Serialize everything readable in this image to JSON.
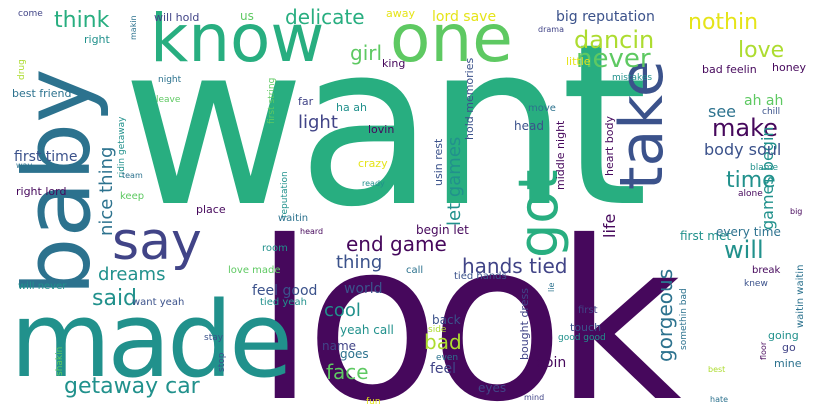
{
  "palette": {
    "dark_purple": "#46085c",
    "indigo": "#414487",
    "slate_blue": "#3b528b",
    "steel_blue": "#2c728e",
    "teal": "#21918c",
    "green_teal": "#28ae80",
    "green": "#5ec962",
    "lime": "#addc30",
    "yellow": "#e5e419"
  },
  "words": [
    "want",
    "look",
    "made",
    "baby",
    "know",
    "one",
    "say",
    "take",
    "got",
    "never",
    "dancin",
    "love",
    "nothin",
    "think",
    "delicate",
    "girl",
    "make",
    "time",
    "games begin",
    "end game",
    "will",
    "said",
    "dreams",
    "hands tied",
    "thing",
    "getaway car",
    "face",
    "bad",
    "gorgeous",
    "let games",
    "light",
    "nice thing",
    "see",
    "ah ah",
    "body soul",
    "cool",
    "begin let",
    "world",
    "feel good",
    "feel",
    "name",
    "goes",
    "yeah call",
    "back",
    "first time",
    "big reputation",
    "lord save",
    "us",
    "will hold",
    "away",
    "king",
    "hold memories",
    "usin rest",
    "ha ah",
    "middle night",
    "heart body",
    "honey",
    "bad feelin",
    "drama",
    "little",
    "mistakes",
    "night",
    "leave",
    "first string",
    "ridin getaway",
    "best friend",
    "drug",
    "right",
    "come",
    "makin",
    "team",
    "far",
    "lovin",
    "crazy",
    "head",
    "move",
    "chill",
    "blame",
    "alone",
    "big",
    "ready",
    "keep",
    "place",
    "reputation",
    "waitin",
    "heard",
    "right lord",
    "way",
    "room",
    "call",
    "tied hands",
    "lie",
    "first met",
    "every time",
    "waitin waitin",
    "break",
    "knew",
    "love made",
    "tied yeah",
    "want yeah",
    "will never",
    "shakin",
    "stay",
    "stop",
    "side",
    "even",
    "bought dress",
    "first",
    "touch",
    "good good",
    "somethin bad",
    "floor",
    "going",
    "go",
    "mine",
    "best",
    "doin",
    "eyes",
    "mind",
    "fun",
    "hate",
    "life"
  ]
}
